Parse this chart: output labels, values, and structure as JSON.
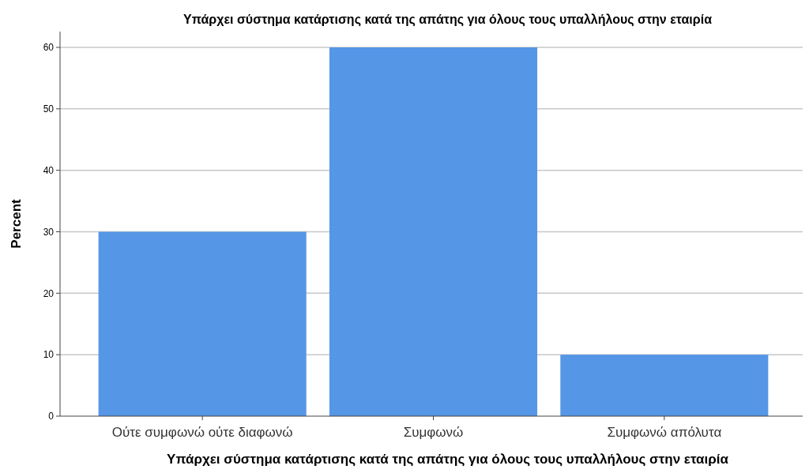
{
  "chart_data": {
    "type": "bar",
    "title": "Υπάρχει σύστημα κατάρτισης κατά της απάτης για όλους τους υπαλλήλους στην εταιρία",
    "xlabel": "Υπάρχει σύστημα κατάρτισης κατά της απάτης για όλους τους υπαλλήλους στην εταιρία",
    "ylabel": "Percent",
    "categories": [
      "Ούτε συμφωνώ ούτε διαφωνώ",
      "Συμφωνώ",
      "Συμφωνώ απόλυτα"
    ],
    "values": [
      30,
      60,
      10
    ],
    "color": "#5596e6",
    "ylim": [
      0,
      60
    ],
    "yticks": [
      0,
      10,
      20,
      30,
      40,
      50,
      60
    ],
    "grid": "y"
  }
}
